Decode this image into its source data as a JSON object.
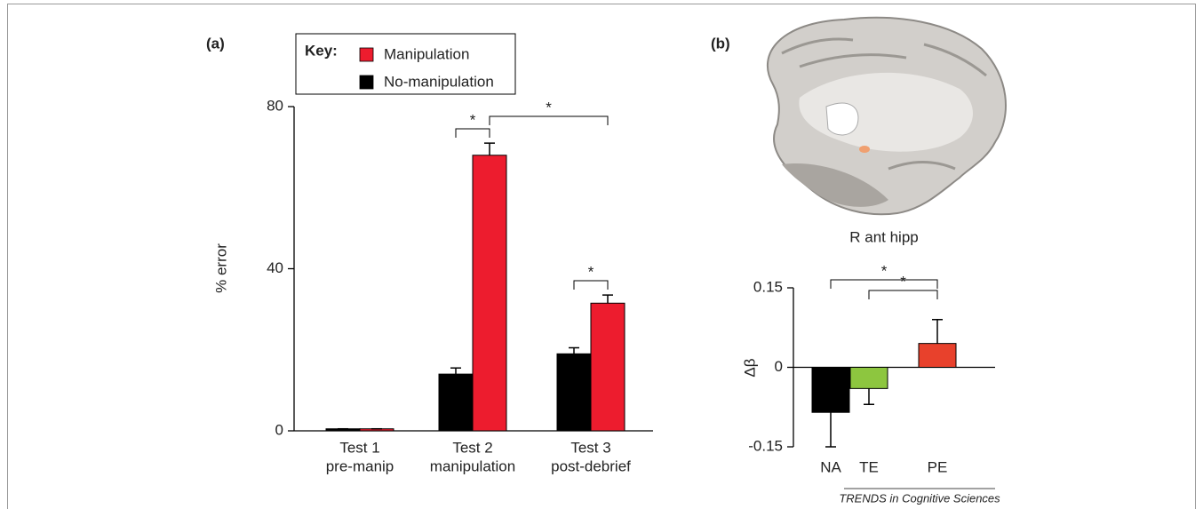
{
  "chart_data": [
    {
      "type": "bar",
      "panel_label": "(a)",
      "y_label": "% error",
      "legend_title": "Key:",
      "categories": [
        [
          "Test 1",
          "pre-manip"
        ],
        [
          "Test 2",
          "manipulation"
        ],
        [
          "Test 3",
          "post-debrief"
        ]
      ],
      "series": [
        {
          "name": "No-manipulation",
          "color": "#000000",
          "values": [
            0.5,
            14,
            19
          ],
          "errors": [
            0,
            1.5,
            1.5
          ]
        },
        {
          "name": "Manipulation",
          "color": "#ed1c2e",
          "values": [
            0.5,
            68,
            31.5
          ],
          "errors": [
            0,
            3,
            2
          ]
        }
      ],
      "ylim": [
        0,
        80
      ],
      "yticks": [
        0,
        40,
        80
      ],
      "annotations": [
        {
          "text": "*",
          "from": [
            0,
            1
          ],
          "to": [
            1,
            1
          ]
        },
        {
          "text": "*",
          "from": [
            1,
            1
          ],
          "to": [
            1,
            2
          ]
        },
        {
          "text": "*",
          "from": [
            0,
            2
          ],
          "to": [
            1,
            2
          ]
        }
      ]
    },
    {
      "type": "bar",
      "panel_label": "(b)",
      "image_caption": "R ant hipp",
      "y_label": "Δβ",
      "categories": [
        "NA",
        "TE",
        "PE"
      ],
      "values": [
        -0.085,
        -0.04,
        0.045
      ],
      "errors": [
        0.065,
        0.03,
        0.045
      ],
      "colors": [
        "#000000",
        "#8dc63f",
        "#e8412c"
      ],
      "ylim": [
        -0.15,
        0.15
      ],
      "yticks": [
        -0.15,
        0,
        0.15
      ],
      "annotations": [
        {
          "text": "*",
          "from": 0,
          "to": 2
        },
        {
          "text": "*",
          "from": 1,
          "to": 2
        }
      ]
    }
  ],
  "footer": "TRENDS in Cognitive Sciences"
}
